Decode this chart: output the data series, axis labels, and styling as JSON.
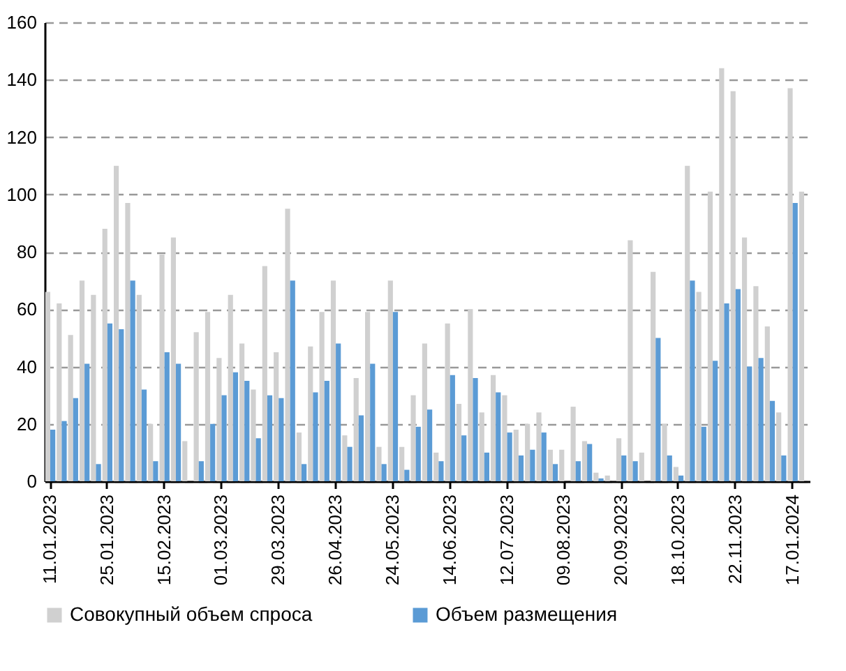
{
  "chart_data": {
    "type": "bar",
    "categories": [
      "11.01.2023",
      null,
      null,
      null,
      null,
      "25.01.2023",
      null,
      null,
      null,
      null,
      "15.02.2023",
      null,
      null,
      null,
      null,
      "01.03.2023",
      null,
      null,
      null,
      null,
      "29.03.2023",
      null,
      null,
      null,
      null,
      "26.04.2023",
      null,
      null,
      null,
      null,
      "24.05.2023",
      null,
      null,
      null,
      null,
      "14.06.2023",
      null,
      null,
      null,
      null,
      "12.07.2023",
      null,
      null,
      null,
      null,
      "09.08.2023",
      null,
      null,
      null,
      null,
      "20.09.2023",
      null,
      null,
      null,
      null,
      "18.10.2023",
      null,
      null,
      null,
      null,
      "22.11.2023",
      null,
      null,
      null,
      null,
      "17.01.2024",
      null
    ],
    "series": [
      {
        "name": "Совокупный объем спроса",
        "color": "#d0d0d0",
        "values": [
          66,
          62,
          51,
          70,
          65,
          88,
          110,
          97,
          65,
          20,
          79,
          85,
          14,
          52,
          59,
          43,
          65,
          48,
          32,
          75,
          45,
          95,
          17,
          47,
          59,
          70,
          16,
          36,
          59,
          12,
          70,
          12,
          30,
          48,
          10,
          55,
          27,
          60,
          24,
          37,
          30,
          18,
          20,
          24,
          11,
          11,
          26,
          14,
          3,
          2,
          15,
          84,
          10,
          73,
          20,
          5,
          110,
          66,
          101,
          144,
          136,
          85,
          68,
          54,
          24,
          137,
          101
        ]
      },
      {
        "name": "Объем размещения",
        "color": "#5b9bd5",
        "values": [
          18,
          21,
          29,
          41,
          6,
          55,
          53,
          70,
          32,
          7,
          45,
          41,
          0,
          7,
          20,
          30,
          38,
          35,
          15,
          30,
          29,
          70,
          6,
          31,
          35,
          48,
          12,
          23,
          41,
          6,
          59,
          4,
          19,
          25,
          7,
          37,
          16,
          36,
          10,
          31,
          17,
          9,
          11,
          17,
          6,
          0,
          7,
          13,
          1,
          0,
          9,
          7,
          0,
          50,
          9,
          2,
          70,
          19,
          42,
          62,
          67,
          40,
          43,
          28,
          9,
          97,
          null
        ]
      }
    ],
    "ylim": [
      0,
      160
    ],
    "yticks": [
      0,
      20,
      40,
      60,
      80,
      100,
      120,
      140,
      160
    ],
    "grid": "y",
    "legend": "bottom"
  }
}
